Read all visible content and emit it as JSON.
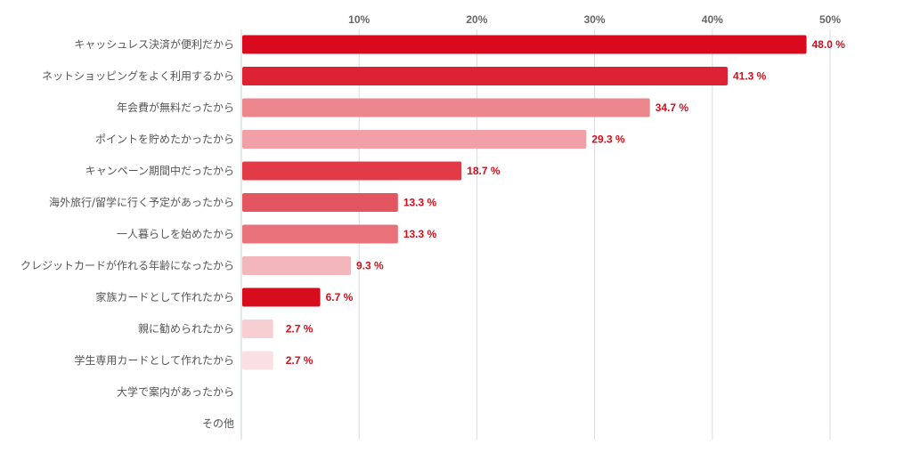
{
  "chart_data": {
    "type": "bar",
    "orientation": "horizontal",
    "title": "",
    "xlabel": "",
    "ylabel": "",
    "xlim": [
      0,
      52
    ],
    "grid": true,
    "value_suffix": " %",
    "ticks": [
      {
        "value": 10,
        "label": "10%"
      },
      {
        "value": 20,
        "label": "20%"
      },
      {
        "value": 30,
        "label": "30%"
      },
      {
        "value": 40,
        "label": "40%"
      },
      {
        "value": 50,
        "label": "50%"
      }
    ],
    "categories": [
      "キャッシュレス決済が便利だから",
      "ネットショッピングをよく利用するから",
      "年会費が無料だったから",
      "ポイントを貯めたかったから",
      "キャンペーン期間中だったから",
      "海外旅行/留学に行く予定があったから",
      "一人暮らしを始めたから",
      "クレジットカードが作れる年齢になったから",
      "家族カードとして作れたから",
      "親に勧められたから",
      "学生専用カードとして作れたから",
      "大学で案内があったから",
      "その他"
    ],
    "values": [
      48.0,
      41.3,
      34.7,
      29.3,
      18.7,
      13.3,
      13.3,
      9.3,
      6.7,
      2.7,
      2.7,
      0,
      0
    ],
    "value_labels": [
      "48.0 %",
      "41.3 %",
      "34.7 %",
      "29.3 %",
      "18.7 %",
      "13.3 %",
      "13.3 %",
      "9.3 %",
      "6.7 %",
      "2.7 %",
      "2.7 %",
      "",
      ""
    ],
    "bar_colors": [
      "#d90a1e",
      "#dc2233",
      "#ec878e",
      "#f0a0a6",
      "#e23a47",
      "#e35561",
      "#e8717a",
      "#f3b7bb",
      "#d60d1c",
      "#f7cfd2",
      "#fae0e2",
      "#ffffff",
      "#ffffff"
    ],
    "label_color": "#d0101c",
    "grid_color": "#d6dbe8"
  }
}
